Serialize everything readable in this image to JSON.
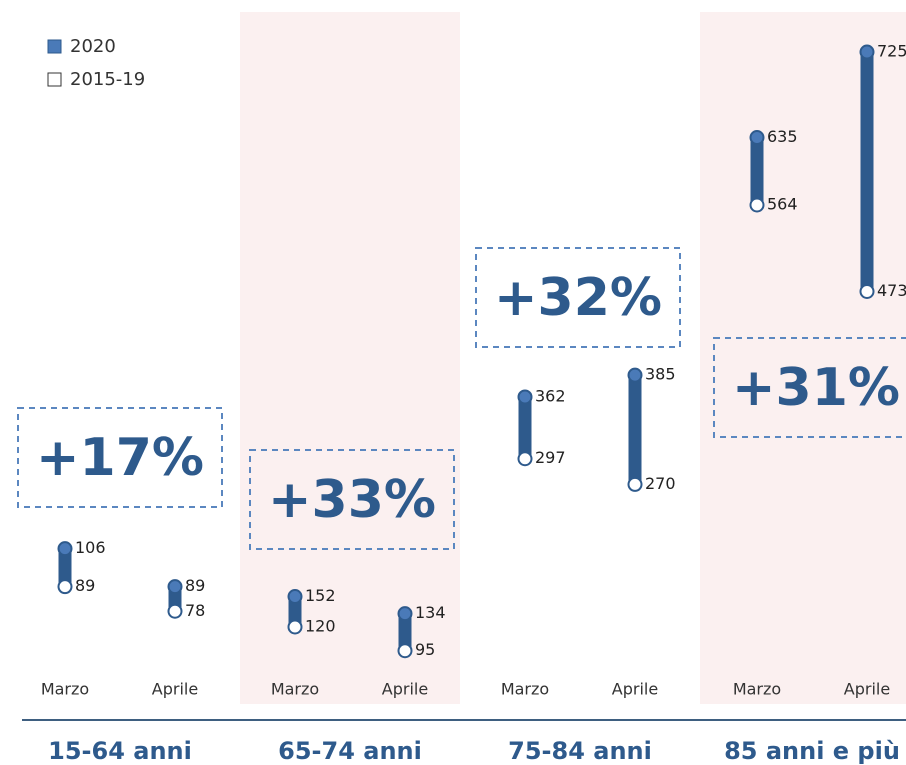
{
  "chart_data": {
    "type": "dumbbell",
    "series": [
      {
        "name": "2020",
        "color": "#4a7ab8"
      },
      {
        "name": "2015-19",
        "color": "#ffffff"
      }
    ],
    "line_color": "#2e5a8c",
    "groups": [
      {
        "name": "15-64 anni",
        "change": "+17%",
        "ylim": [
          20,
          328
        ],
        "categories": [
          "Marzo",
          "Aprile"
        ],
        "values": [
          [
            106,
            89
          ],
          [
            89,
            78
          ]
        ]
      },
      {
        "name": "65-74 anni",
        "change": "+33%",
        "ylim": [
          0,
          725
        ],
        "categories": [
          "Marzo",
          "Aprile"
        ],
        "values": [
          [
            152,
            134
          ],
          [
            120,
            95
          ]
        ]
      },
      {
        "name": "75-84 anni",
        "change": "+32%",
        "ylim": [
          0,
          725
        ],
        "categories": [
          "Marzo",
          "Aprile"
        ],
        "values": [
          [
            362,
            385
          ],
          [
            297,
            270
          ]
        ]
      },
      {
        "name": "85 anni e più",
        "change": "+31%",
        "ylim": [
          0,
          725
        ],
        "categories": [
          "Marzo",
          "Aprile"
        ],
        "values": [
          [
            635,
            725
          ],
          [
            564,
            473
          ]
        ]
      }
    ]
  }
}
